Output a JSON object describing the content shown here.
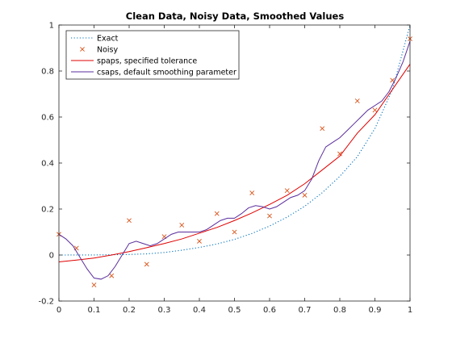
{
  "chart_data": {
    "type": "line",
    "title": "Clean Data, Noisy Data, Smoothed Values",
    "xlabel": "",
    "ylabel": "",
    "xlim": [
      0,
      1
    ],
    "ylim": [
      -0.2,
      1
    ],
    "x_ticks": [
      0,
      0.1,
      0.2,
      0.3,
      0.4,
      0.5,
      0.6,
      0.7,
      0.8,
      0.9,
      1
    ],
    "x_tick_labels": [
      "0",
      "0.1",
      "0.2",
      "0.3",
      "0.4",
      "0.5",
      "0.6",
      "0.7",
      "0.8",
      "0.9",
      "1"
    ],
    "y_ticks": [
      -0.2,
      0,
      0.2,
      0.4,
      0.6,
      0.8,
      1
    ],
    "y_tick_labels": [
      "-0.2",
      "0",
      "0.2",
      "0.4",
      "0.6",
      "0.8",
      "1"
    ],
    "grid": false,
    "legend_position": "top-left",
    "series": [
      {
        "name": "Exact",
        "style": "dotted",
        "color": "#0072bd",
        "x": [
          0,
          0.05,
          0.1,
          0.15,
          0.2,
          0.25,
          0.3,
          0.35,
          0.4,
          0.45,
          0.5,
          0.55,
          0.6,
          0.65,
          0.7,
          0.75,
          0.8,
          0.85,
          0.9,
          0.95,
          1
        ],
        "y": [
          0,
          0.0001,
          0.0003,
          0.0013,
          0.0025,
          0.0052,
          0.011,
          0.021,
          0.033,
          0.048,
          0.068,
          0.094,
          0.126,
          0.165,
          0.212,
          0.271,
          0.342,
          0.428,
          0.55,
          0.72,
          1.0
        ]
      },
      {
        "name": "Noisy",
        "style": "markers-x",
        "color": "#d95319",
        "x": [
          0,
          0.05,
          0.1,
          0.15,
          0.2,
          0.25,
          0.3,
          0.35,
          0.4,
          0.45,
          0.5,
          0.55,
          0.6,
          0.65,
          0.7,
          0.75,
          0.8,
          0.85,
          0.9,
          0.95,
          1
        ],
        "y": [
          0.09,
          0.03,
          -0.13,
          -0.09,
          0.15,
          -0.04,
          0.08,
          0.13,
          0.06,
          0.18,
          0.1,
          0.27,
          0.17,
          0.28,
          0.26,
          0.55,
          0.44,
          0.67,
          0.63,
          0.76,
          0.94
        ]
      },
      {
        "name": "spaps, specified tolerance",
        "style": "solid",
        "color": "#e00000",
        "x": [
          0,
          0.05,
          0.1,
          0.15,
          0.2,
          0.25,
          0.3,
          0.35,
          0.4,
          0.45,
          0.5,
          0.55,
          0.6,
          0.65,
          0.7,
          0.75,
          0.8,
          0.85,
          0.9,
          0.95,
          1
        ],
        "y": [
          -0.03,
          -0.022,
          -0.013,
          0.0,
          0.015,
          0.032,
          0.05,
          0.07,
          0.095,
          0.12,
          0.15,
          0.183,
          0.22,
          0.26,
          0.31,
          0.37,
          0.43,
          0.53,
          0.61,
          0.72,
          0.83
        ]
      },
      {
        "name": "csaps, default smoothing parameter",
        "style": "solid",
        "color": "#5a2d9c",
        "x": [
          0,
          0.02,
          0.04,
          0.06,
          0.08,
          0.1,
          0.12,
          0.14,
          0.16,
          0.18,
          0.2,
          0.22,
          0.24,
          0.26,
          0.28,
          0.3,
          0.32,
          0.34,
          0.36,
          0.38,
          0.4,
          0.42,
          0.44,
          0.46,
          0.48,
          0.5,
          0.52,
          0.54,
          0.56,
          0.58,
          0.6,
          0.62,
          0.64,
          0.66,
          0.68,
          0.7,
          0.72,
          0.74,
          0.76,
          0.78,
          0.8,
          0.82,
          0.84,
          0.86,
          0.88,
          0.9,
          0.92,
          0.94,
          0.96,
          0.98,
          1
        ],
        "y": [
          0.09,
          0.07,
          0.04,
          -0.01,
          -0.06,
          -0.1,
          -0.105,
          -0.09,
          -0.05,
          0.0,
          0.05,
          0.06,
          0.05,
          0.04,
          0.05,
          0.07,
          0.09,
          0.1,
          0.1,
          0.1,
          0.1,
          0.11,
          0.13,
          0.15,
          0.16,
          0.16,
          0.18,
          0.205,
          0.215,
          0.21,
          0.2,
          0.21,
          0.23,
          0.25,
          0.26,
          0.28,
          0.33,
          0.41,
          0.47,
          0.49,
          0.51,
          0.54,
          0.57,
          0.6,
          0.63,
          0.65,
          0.67,
          0.71,
          0.77,
          0.84,
          0.93
        ]
      }
    ]
  }
}
